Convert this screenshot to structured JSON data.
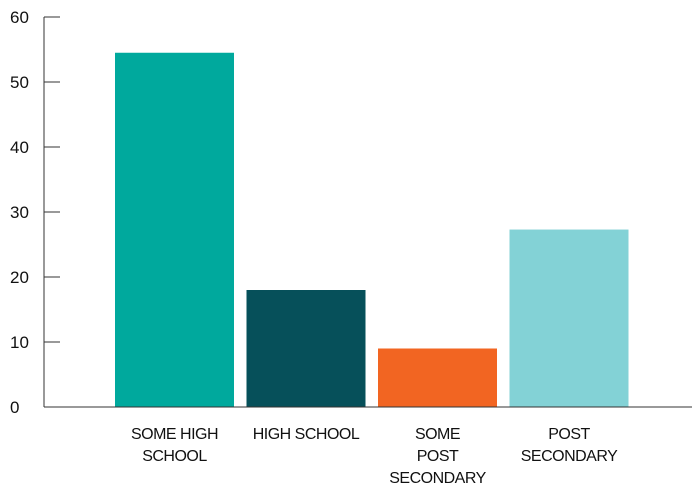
{
  "chart_data": {
    "type": "bar",
    "categories": [
      [
        "SOME HIGH",
        "SCHOOL"
      ],
      [
        "HIGH SCHOOL"
      ],
      [
        "SOME",
        "POST",
        "SECONDARY"
      ],
      [
        "POST",
        "SECONDARY"
      ]
    ],
    "values": [
      54.5,
      18,
      9,
      27.3
    ],
    "colors": [
      "#00A99D",
      "#06505A",
      "#F26522",
      "#83D2D6"
    ],
    "yticks": [
      "0",
      "10",
      "20",
      "30",
      "40",
      "50",
      "60"
    ],
    "ylim": [
      0,
      60
    ],
    "grid": false,
    "legend": "none"
  }
}
